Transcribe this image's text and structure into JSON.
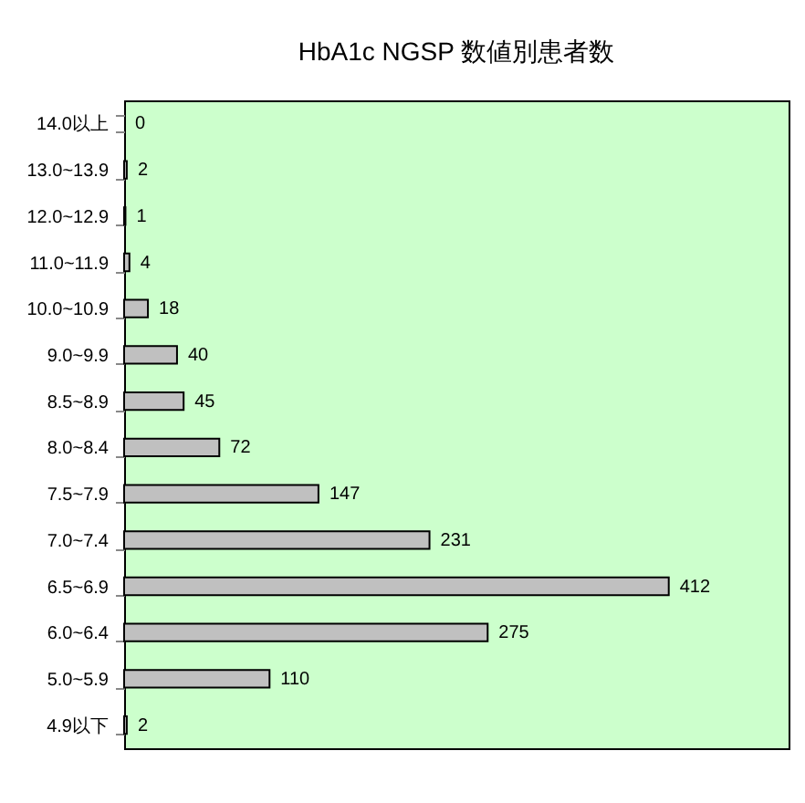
{
  "chart_data": {
    "type": "bar",
    "orientation": "horizontal",
    "title": "HbA1c NGSP 数値別患者数",
    "categories": [
      "14.0以上",
      "13.0~13.9",
      "12.0~12.9",
      "11.0~11.9",
      "10.0~10.9",
      "9.0~9.9",
      "8.5~8.9",
      "8.0~8.4",
      "7.5~7.9",
      "7.0~7.4",
      "6.5~6.9",
      "6.0~6.4",
      "5.0~5.9",
      "4.9以下"
    ],
    "values": [
      0,
      2,
      1,
      4,
      18,
      40,
      45,
      72,
      147,
      231,
      412,
      275,
      110,
      2
    ],
    "color": "#c0c0c0",
    "data_labels": true,
    "tick_labels": "y"
  }
}
